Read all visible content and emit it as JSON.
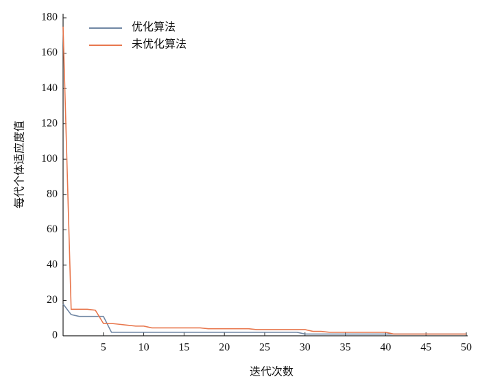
{
  "chart_data": {
    "type": "line",
    "x_label": "迭代次数",
    "y_label": "每代个体适应度值",
    "x": [
      0,
      1,
      2,
      3,
      4,
      5,
      6,
      7,
      8,
      9,
      10,
      11,
      12,
      13,
      14,
      15,
      16,
      17,
      18,
      19,
      20,
      21,
      22,
      23,
      24,
      25,
      26,
      27,
      28,
      29,
      30,
      31,
      32,
      33,
      34,
      35,
      36,
      37,
      38,
      39,
      40,
      41,
      42,
      43,
      44,
      45,
      46,
      47,
      48,
      49,
      50
    ],
    "series": [
      {
        "name": "优化算法",
        "color": "#6f86a3",
        "values": [
          18,
          12,
          11,
          11,
          11,
          11,
          2,
          2,
          2,
          2,
          2,
          2,
          2,
          2,
          2,
          2,
          2,
          2,
          2,
          2,
          2,
          2,
          2,
          2,
          2,
          2,
          2,
          2,
          2,
          2,
          1,
          1,
          1,
          1,
          1,
          1,
          1,
          1,
          1,
          1,
          1,
          1,
          1,
          1,
          1,
          1,
          1,
          1,
          1,
          1,
          1
        ]
      },
      {
        "name": "未优化算法",
        "color": "#e8774d",
        "values": [
          175,
          15,
          15,
          15,
          14.5,
          7,
          7,
          6.5,
          6,
          5.5,
          5.5,
          4.5,
          4.5,
          4.5,
          4.5,
          4.5,
          4.5,
          4.5,
          4,
          4,
          4,
          4,
          4,
          4,
          3.5,
          3.5,
          3.5,
          3.5,
          3.5,
          3.5,
          3.5,
          2.5,
          2.5,
          2,
          2,
          2,
          2,
          2,
          2,
          2,
          2,
          1,
          1,
          1,
          1,
          1,
          1,
          1,
          1,
          1,
          1
        ]
      }
    ],
    "xlim": [
      0,
      50
    ],
    "xticks": [
      5,
      10,
      15,
      20,
      25,
      30,
      35,
      40,
      45,
      50
    ],
    "ylim": [
      0,
      180
    ],
    "yticks": [
      0,
      20,
      40,
      60,
      80,
      100,
      120,
      140,
      160,
      180
    ],
    "grid": false,
    "legend": "upper left"
  }
}
